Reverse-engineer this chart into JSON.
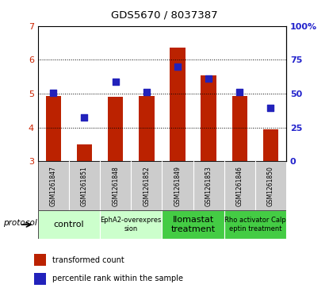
{
  "title": "GDS5670 / 8037387",
  "samples": [
    "GSM1261847",
    "GSM1261851",
    "GSM1261848",
    "GSM1261852",
    "GSM1261849",
    "GSM1261853",
    "GSM1261846",
    "GSM1261850"
  ],
  "red_values": [
    4.93,
    3.5,
    4.9,
    4.92,
    6.35,
    5.55,
    4.92,
    3.95
  ],
  "blue_values": [
    5.02,
    4.3,
    5.35,
    5.05,
    5.8,
    5.45,
    5.05,
    4.57
  ],
  "ylim_left": [
    3,
    7
  ],
  "ylim_right": [
    0,
    100
  ],
  "yticks_left": [
    3,
    4,
    5,
    6,
    7
  ],
  "yticks_right": [
    0,
    25,
    50,
    75,
    100
  ],
  "bar_color": "#bb2200",
  "dot_color": "#2222bb",
  "protocols": [
    {
      "label": "control",
      "spans": [
        0,
        2
      ],
      "color": "#ccffcc",
      "textsize": 8
    },
    {
      "label": "EphA2-overexpres\nsion",
      "spans": [
        2,
        4
      ],
      "color": "#ccffcc",
      "textsize": 6
    },
    {
      "label": "Ilomastat\ntreatment",
      "spans": [
        4,
        6
      ],
      "color": "#44cc44",
      "textsize": 8
    },
    {
      "label": "Rho activator Calp\neptin treatment",
      "spans": [
        6,
        8
      ],
      "color": "#44cc44",
      "textsize": 6
    }
  ],
  "bar_width": 0.5,
  "bar_bottom": 3.0,
  "dot_size": 28,
  "background_color": "#ffffff",
  "left_label_color": "#cc2200",
  "right_label_color": "#2222cc",
  "legend_items": [
    {
      "label": "transformed count",
      "color": "#bb2200"
    },
    {
      "label": "percentile rank within the sample",
      "color": "#2222bb"
    }
  ],
  "protocol_label": "protocol",
  "sample_area_color": "#cccccc",
  "sample_divider_color": "#ffffff",
  "protocol_divider_color": "#ffffff"
}
